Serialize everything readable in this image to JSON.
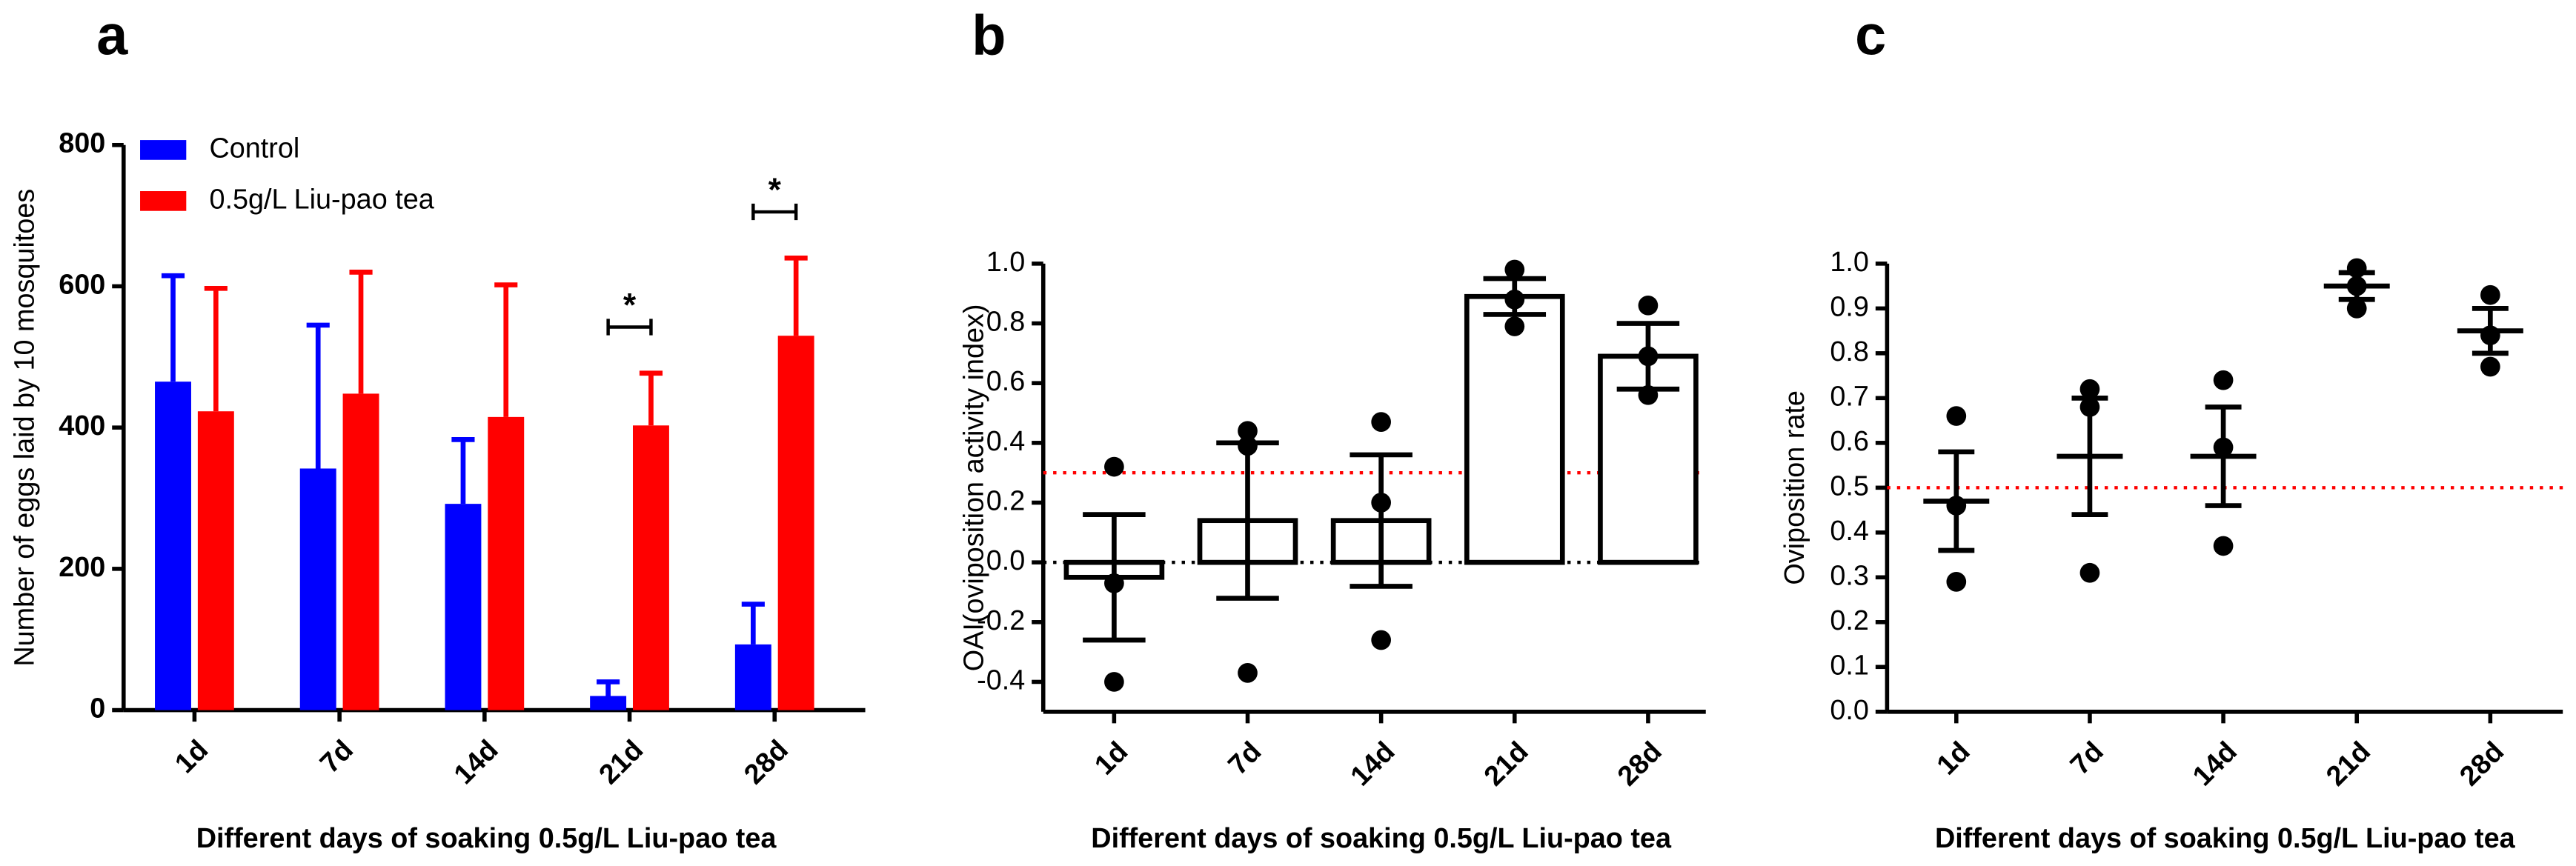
{
  "chart_data": [
    {
      "type": "bar",
      "panel_label": "a",
      "y_label": "Number of eggs laid by 10 mosquitoes",
      "x_label": "Different days of soaking 0.5g/L Liu-pao tea",
      "categories": [
        "1d",
        "7d",
        "14d",
        "21d",
        "28d"
      ],
      "ylim": [
        0,
        800
      ],
      "yticks": [
        0,
        200,
        400,
        600,
        800
      ],
      "error_direction": "up",
      "legend": "upper left",
      "significance": [
        null,
        null,
        null,
        "*",
        "*"
      ],
      "series": [
        {
          "name": "Control",
          "color": "#0000ff",
          "values": [
            465,
            342,
            292,
            20,
            93
          ],
          "errors": [
            150,
            203,
            91,
            20,
            57
          ]
        },
        {
          "name": "0.5g/L Liu-pao tea",
          "color": "#ff0000",
          "values": [
            423,
            448,
            415,
            403,
            530
          ],
          "errors": [
            174,
            172,
            187,
            74,
            110
          ]
        }
      ]
    },
    {
      "type": "bar",
      "panel_label": "b",
      "y_label": "OAI(oviposition activity index)",
      "x_label": "Different days of soaking 0.5g/L Liu-pao tea",
      "categories": [
        "1d",
        "7d",
        "14d",
        "21d",
        "28d"
      ],
      "ylim": [
        -0.5,
        1.0
      ],
      "yticks": [
        -0.4,
        -0.2,
        {
          "value": 0,
          "label": "0.0"
        },
        0.2,
        0.4,
        0.6,
        0.8,
        {
          "value": 1,
          "label": "1.0"
        }
      ],
      "error_direction": "both",
      "reference_lines": [
        {
          "value": 0.3,
          "color": "#ff0000"
        },
        {
          "value": 0,
          "color": "#000000"
        }
      ],
      "series": [
        {
          "color": "#000000",
          "fill": "#ffffff",
          "values": [
            -0.05,
            0.14,
            0.14,
            0.89,
            0.69
          ],
          "errors": [
            0.21,
            0.26,
            0.22,
            0.06,
            0.11
          ],
          "points": [
            [
              0.32,
              -0.07,
              -0.4
            ],
            [
              0.44,
              0.39,
              -0.37
            ],
            [
              0.47,
              0.2,
              -0.26
            ],
            [
              0.98,
              0.88,
              0.79
            ],
            [
              0.86,
              0.69,
              0.56
            ]
          ]
        }
      ]
    },
    {
      "type": "scatter",
      "panel_label": "c",
      "y_label": "Oviposition rate",
      "x_label": "Different days of soaking 0.5g/L Liu-pao tea",
      "categories": [
        "1d",
        "7d",
        "14d",
        "21d",
        "28d"
      ],
      "ylim": [
        0,
        1.0
      ],
      "yticks": [
        {
          "value": 0,
          "label": "0.0"
        },
        0.1,
        0.2,
        0.3,
        0.4,
        0.5,
        0.6,
        0.7,
        0.8,
        0.9,
        {
          "value": 1,
          "label": "1.0"
        }
      ],
      "error_direction": "both",
      "reference_lines": [
        {
          "value": 0.5,
          "color": "#ff0000"
        }
      ],
      "series": [
        {
          "color": "#000000",
          "values": [
            0.47,
            0.57,
            0.57,
            0.95,
            0.85
          ],
          "errors": [
            0.11,
            0.13,
            0.11,
            0.03,
            0.05
          ],
          "points": [
            [
              0.66,
              0.46,
              0.29
            ],
            [
              0.72,
              0.68,
              0.31
            ],
            [
              0.74,
              0.59,
              0.37
            ],
            [
              0.99,
              0.95,
              0.9
            ],
            [
              0.93,
              0.84,
              0.77
            ]
          ]
        }
      ]
    }
  ]
}
